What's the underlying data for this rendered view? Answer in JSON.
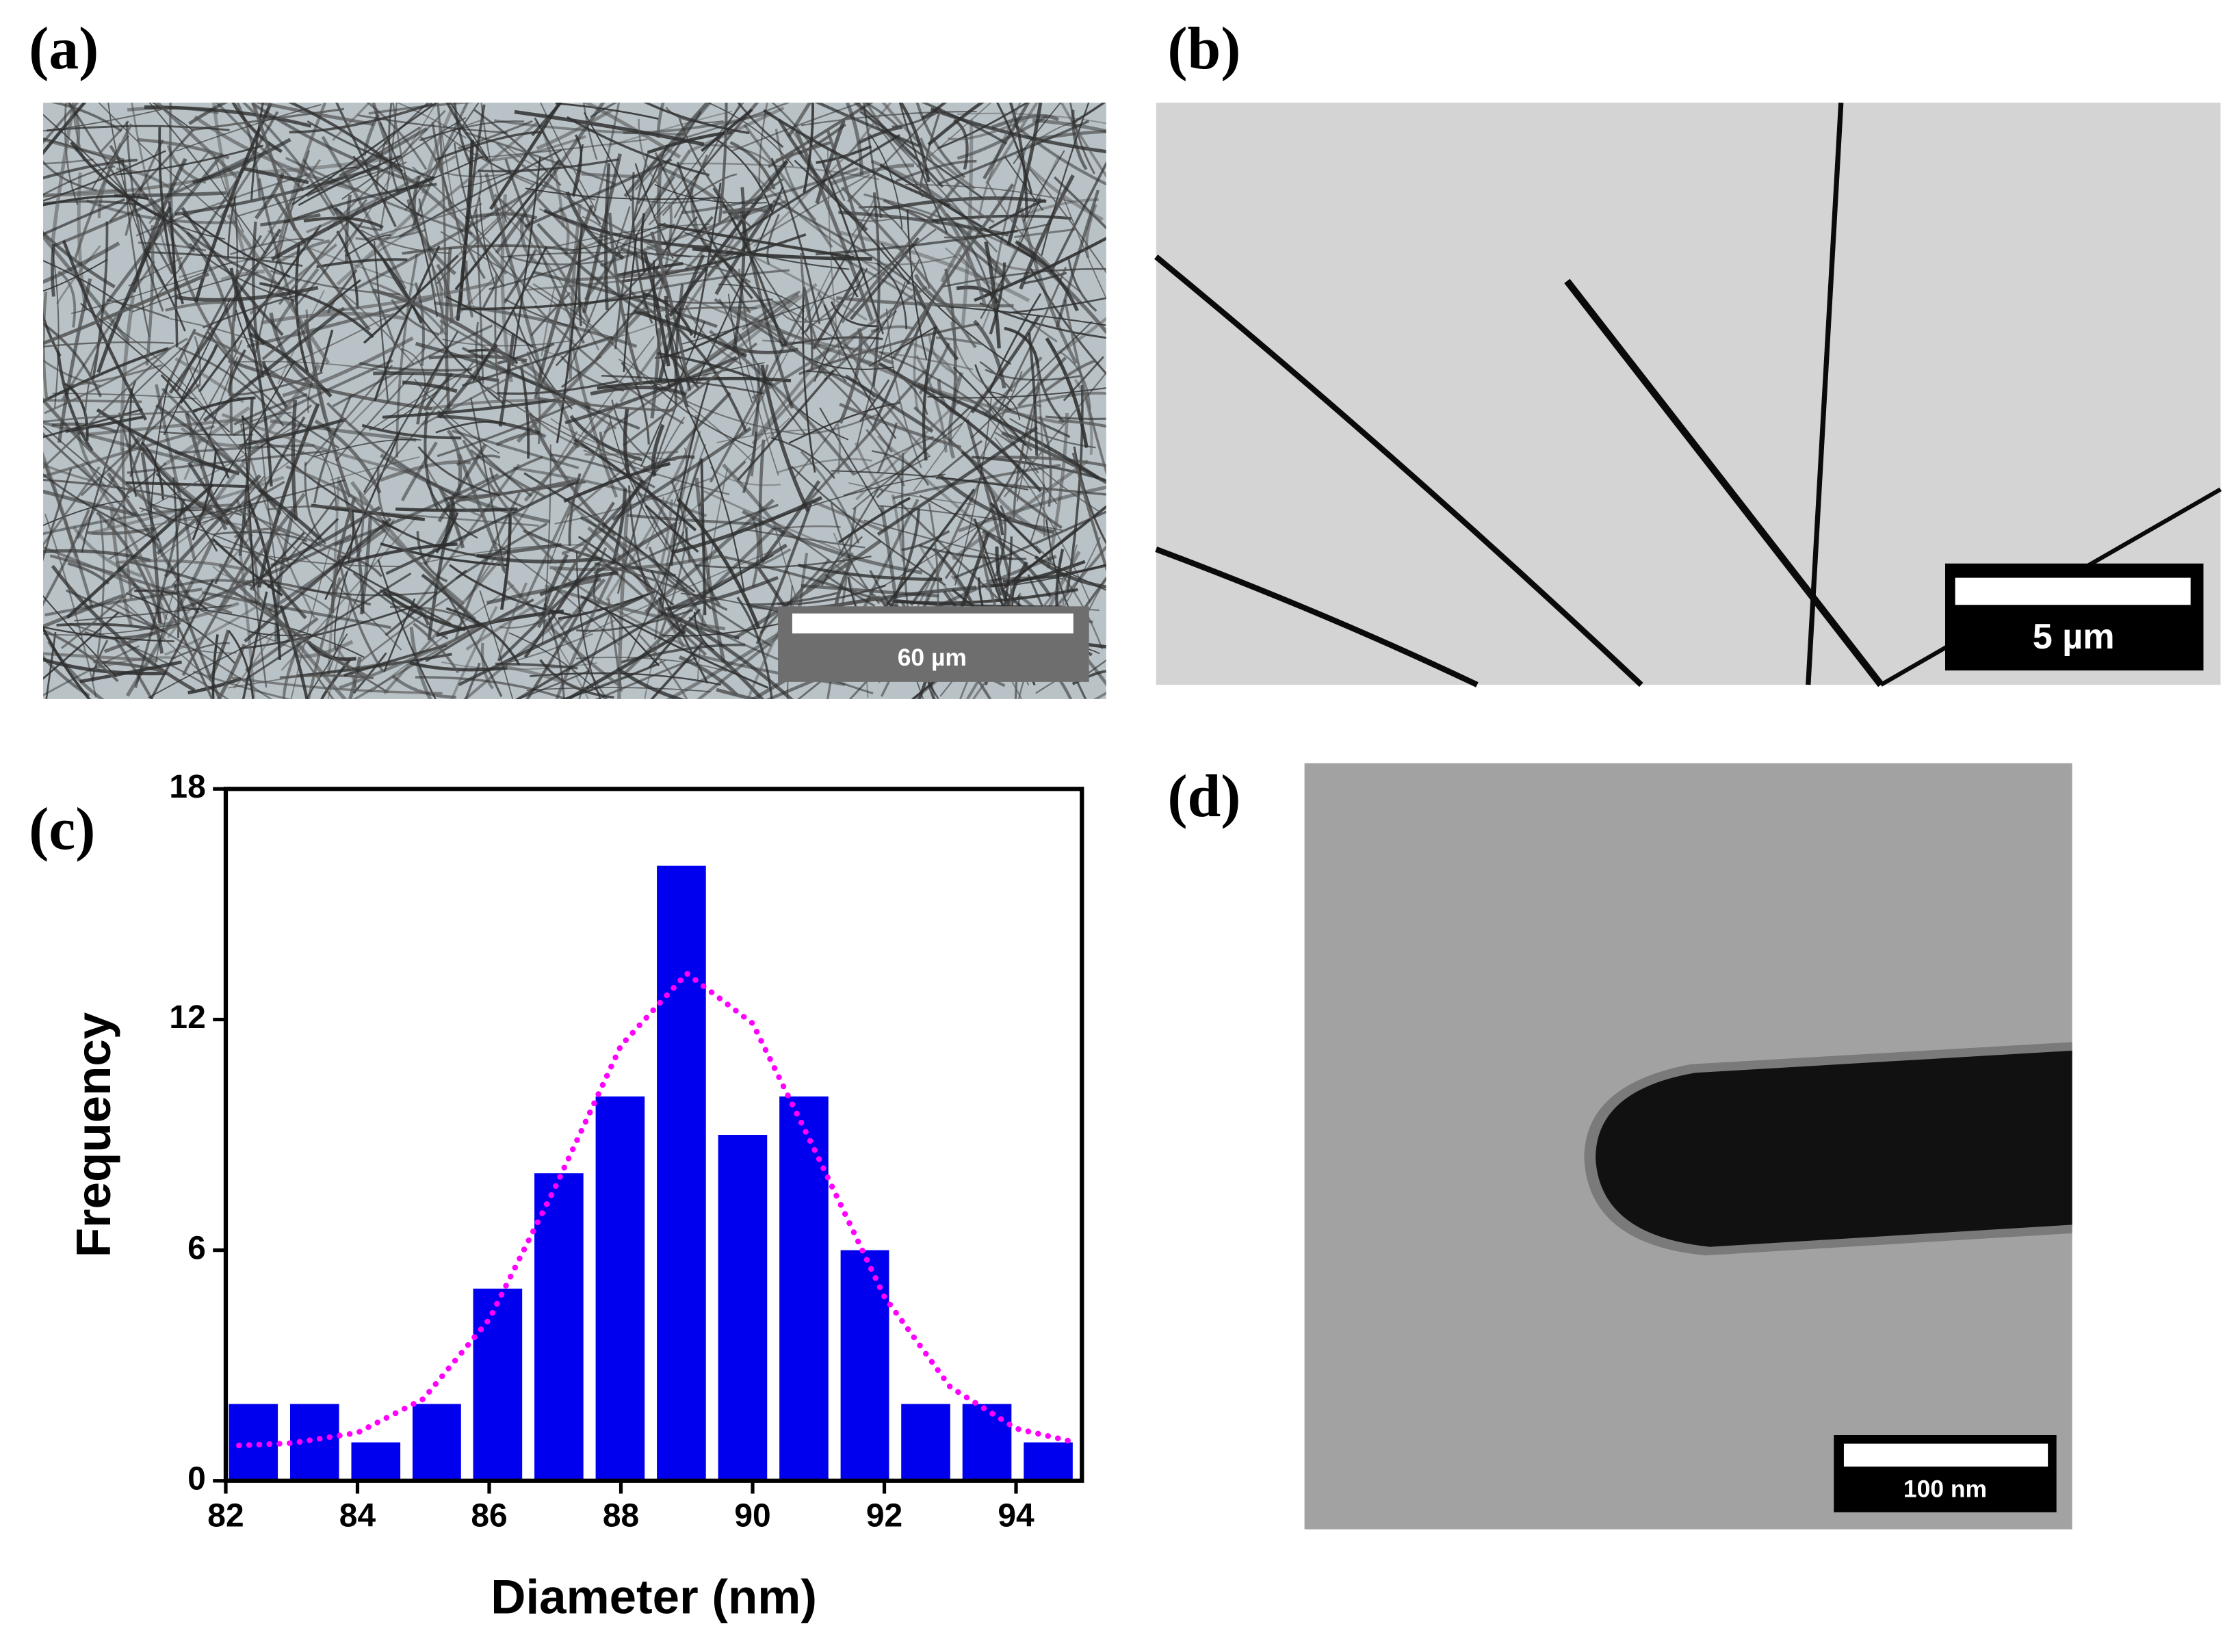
{
  "panels": [
    {
      "label": "(a)",
      "scale_bar": "60 µm"
    },
    {
      "label": "(b)",
      "scale_bar": "5 µm"
    },
    {
      "label": "(c)"
    },
    {
      "label": "(d)",
      "scale_bar": "100 nm"
    }
  ],
  "chart_data": {
    "type": "histogram",
    "xlabel": "Diameter (nm)",
    "ylabel": "Frequency",
    "bins": [
      82,
      82.93,
      83.86,
      84.79,
      85.71,
      86.64,
      87.57,
      88.5,
      89.43,
      90.36,
      91.29,
      92.21,
      93.14,
      94.07,
      95
    ],
    "values": [
      2,
      2,
      1,
      2,
      5,
      8,
      10,
      16,
      9,
      10,
      6,
      2,
      2,
      1
    ],
    "color": "#0000ee",
    "xlim": [
      82,
      95
    ],
    "xticks": [
      82,
      84,
      86,
      88,
      90,
      92,
      94
    ],
    "ylim": [
      0,
      18
    ],
    "yticks": [
      0,
      6,
      12,
      18
    ],
    "fit": {
      "type": "line",
      "color": "#ff00ff",
      "x": [
        82.2,
        83,
        84,
        85,
        86,
        87,
        88,
        89,
        90,
        91,
        92,
        93,
        94,
        94.8
      ],
      "values": [
        0.92,
        0.98,
        1.25,
        2.13,
        4.2,
        7.63,
        11.32,
        13.2,
        11.9,
        8.4,
        4.79,
        2.44,
        1.36,
        1.04
      ]
    }
  }
}
